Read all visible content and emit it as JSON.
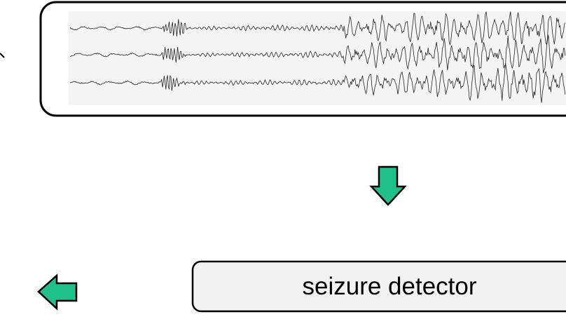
{
  "detector": {
    "label": "seizure detector"
  },
  "colors": {
    "arrow_fill": "#1fc08a",
    "box_stroke": "#000000",
    "box_fill": "#f2f2f2",
    "panel_fill": "#f4f4f4",
    "trace_stroke": "#222222"
  },
  "signal": {
    "channels": 3
  },
  "icons": [
    "down-arrow-icon",
    "left-arrow-icon"
  ]
}
